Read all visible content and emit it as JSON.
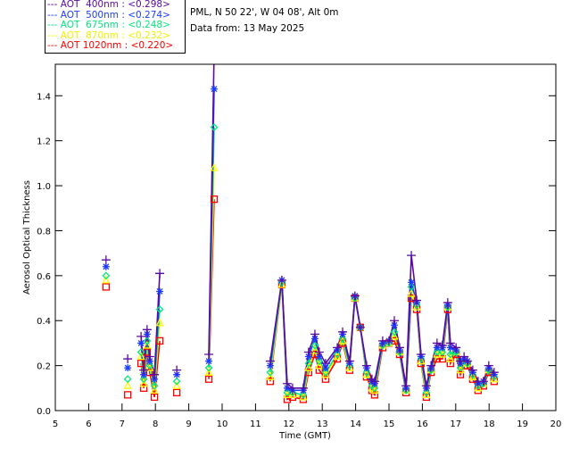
{
  "header": {
    "site": "PML, N 50 22', W 04 08', Alt 0m",
    "date": "Data from: 13 May 2025"
  },
  "chart_data": {
    "type": "line",
    "title": "",
    "xlabel": "Time (GMT)",
    "ylabel": "Aerosol Optical Thickness",
    "xlim": [
      5,
      20
    ],
    "ylim": [
      0,
      1.54
    ],
    "xticks": [
      "5",
      "6",
      "7",
      "8",
      "9",
      "10",
      "11",
      "12",
      "13",
      "14",
      "15",
      "16",
      "17",
      "18",
      "19",
      "20"
    ],
    "yticks": [
      "0.0",
      "0.2",
      "0.4",
      "0.6",
      "0.8",
      "1.0",
      "1.2",
      "1.4"
    ],
    "legend_position": "top-left",
    "x": [
      6.52,
      7.17,
      7.57,
      7.65,
      7.75,
      7.83,
      7.97,
      8.13,
      8.64,
      9.6,
      9.76,
      11.44,
      11.79,
      11.95,
      12.11,
      12.43,
      12.59,
      12.78,
      12.91,
      13.1,
      13.45,
      13.61,
      13.82,
      13.98,
      14.14,
      14.33,
      14.49,
      14.57,
      14.81,
      15.0,
      15.16,
      15.32,
      15.51,
      15.67,
      15.83,
      15.96,
      16.12,
      16.26,
      16.44,
      16.6,
      16.76,
      16.84,
      17.01,
      17.14,
      17.25,
      17.35,
      17.51,
      17.67,
      17.83,
      17.99,
      18.15
    ],
    "series": [
      {
        "name": "AOT  400nm",
        "mean": "<0.298>",
        "color": "#5a0aa0",
        "marker": "plus",
        "values": [
          0.67,
          0.23,
          0.33,
          0.18,
          0.36,
          0.24,
          0.16,
          0.61,
          0.18,
          0.25,
          1.6,
          0.22,
          0.58,
          0.12,
          0.1,
          0.1,
          0.26,
          0.34,
          0.26,
          0.21,
          0.28,
          0.35,
          0.22,
          0.51,
          0.37,
          0.2,
          0.14,
          0.13,
          0.31,
          0.31,
          0.4,
          0.28,
          0.11,
          0.69,
          0.49,
          0.25,
          0.11,
          0.2,
          0.3,
          0.29,
          0.48,
          0.3,
          0.28,
          0.22,
          0.24,
          0.22,
          0.18,
          0.13,
          0.13,
          0.2,
          0.17
        ]
      },
      {
        "name": "AOT  500nm",
        "mean": "<0.274>",
        "color": "#1a3cff",
        "marker": "asterisk",
        "values": [
          0.64,
          0.19,
          0.3,
          0.16,
          0.34,
          0.22,
          0.14,
          0.53,
          0.16,
          0.22,
          1.43,
          0.2,
          0.58,
          0.1,
          0.09,
          0.09,
          0.24,
          0.32,
          0.24,
          0.19,
          0.27,
          0.34,
          0.21,
          0.51,
          0.37,
          0.19,
          0.13,
          0.12,
          0.3,
          0.31,
          0.38,
          0.27,
          0.1,
          0.57,
          0.48,
          0.24,
          0.1,
          0.19,
          0.28,
          0.28,
          0.47,
          0.28,
          0.27,
          0.21,
          0.23,
          0.22,
          0.17,
          0.12,
          0.13,
          0.19,
          0.16
        ]
      },
      {
        "name": "AOT  675nm",
        "mean": "<0.248>",
        "color": "#00e87a",
        "marker": "diamond",
        "values": [
          0.6,
          0.14,
          0.26,
          0.14,
          0.31,
          0.2,
          0.11,
          0.45,
          0.13,
          0.19,
          1.26,
          0.17,
          0.57,
          0.08,
          0.08,
          0.07,
          0.21,
          0.29,
          0.22,
          0.17,
          0.25,
          0.32,
          0.2,
          0.5,
          0.37,
          0.17,
          0.11,
          0.1,
          0.29,
          0.3,
          0.35,
          0.26,
          0.09,
          0.55,
          0.47,
          0.23,
          0.08,
          0.18,
          0.26,
          0.26,
          0.46,
          0.25,
          0.26,
          0.19,
          0.22,
          0.21,
          0.16,
          0.11,
          0.12,
          0.18,
          0.15
        ]
      },
      {
        "name": "AOT  870nm",
        "mean": "<0.232>",
        "color": "#ffff00",
        "marker": "triangle",
        "values": [
          0.58,
          0.11,
          0.24,
          0.12,
          0.29,
          0.19,
          0.09,
          0.39,
          0.11,
          0.17,
          1.08,
          0.15,
          0.56,
          0.07,
          0.07,
          0.06,
          0.19,
          0.27,
          0.2,
          0.16,
          0.24,
          0.31,
          0.19,
          0.5,
          0.37,
          0.16,
          0.1,
          0.09,
          0.29,
          0.3,
          0.33,
          0.26,
          0.09,
          0.52,
          0.46,
          0.22,
          0.07,
          0.18,
          0.25,
          0.25,
          0.46,
          0.23,
          0.26,
          0.18,
          0.21,
          0.21,
          0.15,
          0.1,
          0.12,
          0.18,
          0.14
        ]
      },
      {
        "name": "AOT 1020nm",
        "mean": "<0.220>",
        "color": "#ff0000",
        "marker": "square",
        "values": [
          0.55,
          0.07,
          0.21,
          0.1,
          0.26,
          0.17,
          0.06,
          0.31,
          0.08,
          0.14,
          0.94,
          0.13,
          0.56,
          0.05,
          0.06,
          0.05,
          0.17,
          0.25,
          0.18,
          0.14,
          0.23,
          0.3,
          0.18,
          0.5,
          0.37,
          0.15,
          0.09,
          0.07,
          0.28,
          0.3,
          0.31,
          0.25,
          0.08,
          0.5,
          0.45,
          0.21,
          0.06,
          0.17,
          0.23,
          0.23,
          0.45,
          0.21,
          0.25,
          0.16,
          0.2,
          0.2,
          0.14,
          0.09,
          0.11,
          0.17,
          0.13
        ]
      }
    ]
  }
}
